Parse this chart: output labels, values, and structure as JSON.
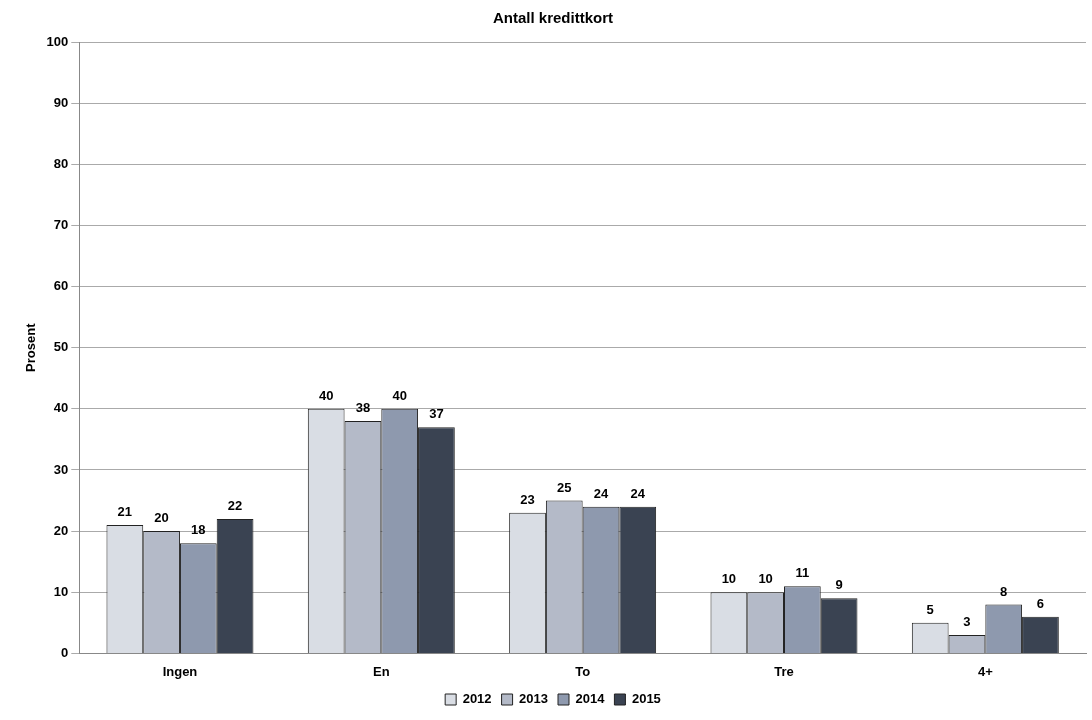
{
  "chart_data": {
    "type": "bar",
    "title": "Antall kredittkort",
    "ylabel": "Prosent",
    "categories": [
      "Ingen",
      "En",
      "To",
      "Tre",
      "4+"
    ],
    "series": [
      {
        "name": "2012",
        "color": "#d9dde4",
        "values": [
          21,
          40,
          23,
          10,
          5
        ]
      },
      {
        "name": "2013",
        "color": "#b4bac8",
        "values": [
          20,
          38,
          25,
          10,
          3
        ]
      },
      {
        "name": "2014",
        "color": "#8e99ae",
        "values": [
          18,
          40,
          24,
          11,
          8
        ]
      },
      {
        "name": "2015",
        "color": "#3a4352",
        "values": [
          22,
          37,
          24,
          9,
          6
        ]
      }
    ],
    "ylim": [
      0,
      100
    ],
    "yticks": [
      0,
      10,
      20,
      30,
      40,
      50,
      60,
      70,
      80,
      90,
      100
    ],
    "grid": "y",
    "legend": "bottom",
    "data_labels": true
  }
}
